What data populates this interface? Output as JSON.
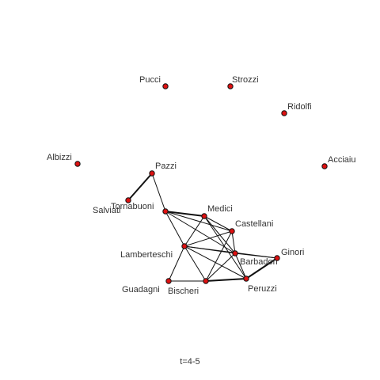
{
  "time_label": "t=4-5",
  "node_color": "#dd1111",
  "edge_color": "#111111",
  "nodes": [
    {
      "id": "Pucci",
      "label": "Pucci"
    },
    {
      "id": "Strozzi",
      "label": "Strozzi"
    },
    {
      "id": "Ridolfi",
      "label": "Ridolfi"
    },
    {
      "id": "Albizzi",
      "label": "Albizzi"
    },
    {
      "id": "Acciaiuoli",
      "label": "Acciaiu"
    },
    {
      "id": "Pazzi",
      "label": "Pazzi"
    },
    {
      "id": "Salviati",
      "label": "Salviati"
    },
    {
      "id": "Tornabuoni",
      "label": "Tornabuoni"
    },
    {
      "id": "Medici",
      "label": "Medici"
    },
    {
      "id": "Castellani",
      "label": "Castellani"
    },
    {
      "id": "Lamberteschi",
      "label": "Lamberteschi"
    },
    {
      "id": "Barbadori",
      "label": "Barbadori"
    },
    {
      "id": "Ginori",
      "label": "Ginori"
    },
    {
      "id": "Guadagni",
      "label": "Guadagni"
    },
    {
      "id": "Bischeri",
      "label": "Bischeri"
    },
    {
      "id": "Peruzzi",
      "label": "Peruzzi"
    }
  ],
  "edges": [
    {
      "from": "Salviati",
      "to": "Pazzi",
      "weight": 2
    },
    {
      "from": "Pazzi",
      "to": "Tornabuoni",
      "weight": 1
    },
    {
      "from": "Tornabuoni",
      "to": "Medici",
      "weight": 2
    },
    {
      "from": "Tornabuoni",
      "to": "Castellani",
      "weight": 1
    },
    {
      "from": "Tornabuoni",
      "to": "Lamberteschi",
      "weight": 1
    },
    {
      "from": "Tornabuoni",
      "to": "Barbadori",
      "weight": 1
    },
    {
      "from": "Medici",
      "to": "Castellani",
      "weight": 1
    },
    {
      "from": "Medici",
      "to": "Lamberteschi",
      "weight": 1
    },
    {
      "from": "Medici",
      "to": "Barbadori",
      "weight": 1
    },
    {
      "from": "Medici",
      "to": "Peruzzi",
      "weight": 1
    },
    {
      "from": "Castellani",
      "to": "Lamberteschi",
      "weight": 1
    },
    {
      "from": "Castellani",
      "to": "Barbadori",
      "weight": 1
    },
    {
      "from": "Castellani",
      "to": "Bischeri",
      "weight": 1
    },
    {
      "from": "Lamberteschi",
      "to": "Barbadori",
      "weight": 1
    },
    {
      "from": "Lamberteschi",
      "to": "Guadagni",
      "weight": 1
    },
    {
      "from": "Lamberteschi",
      "to": "Bischeri",
      "weight": 1
    },
    {
      "from": "Lamberteschi",
      "to": "Peruzzi",
      "weight": 1
    },
    {
      "from": "Lamberteschi",
      "to": "Ginori",
      "weight": 1
    },
    {
      "from": "Barbadori",
      "to": "Peruzzi",
      "weight": 1
    },
    {
      "from": "Barbadori",
      "to": "Ginori",
      "weight": 1
    },
    {
      "from": "Barbadori",
      "to": "Bischeri",
      "weight": 1
    },
    {
      "from": "Guadagni",
      "to": "Bischeri",
      "weight": 1
    },
    {
      "from": "Bischeri",
      "to": "Peruzzi",
      "weight": 2
    },
    {
      "from": "Peruzzi",
      "to": "Ginori",
      "weight": 2
    }
  ]
}
